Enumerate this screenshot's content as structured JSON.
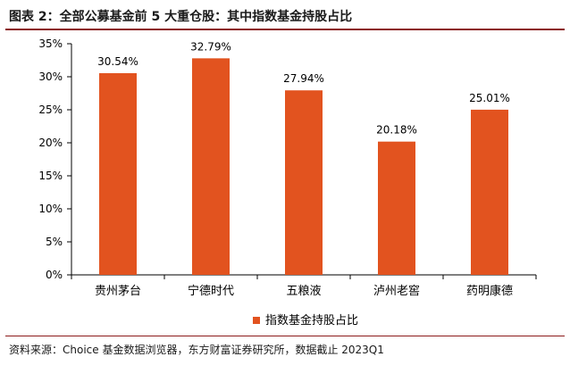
{
  "figure": {
    "title": "图表 2：全部公募基金前 5 大重仓股：其中指数基金持股占比",
    "source": "资料来源：Choice 基金数据浏览器，东方财富证券研究所，数据截止 2023Q1"
  },
  "chart_data": {
    "type": "bar",
    "categories": [
      "贵州茅台",
      "宁德时代",
      "五粮液",
      "泸州老窖",
      "药明康德"
    ],
    "series": [
      {
        "name": "指数基金持股占比",
        "values": [
          30.54,
          32.79,
          27.94,
          20.18,
          25.01
        ],
        "labels": [
          "30.54%",
          "32.79%",
          "27.94%",
          "20.18%",
          "25.01%"
        ],
        "color": "#E2531F"
      }
    ],
    "yticks": [
      "0%",
      "5%",
      "10%",
      "15%",
      "20%",
      "25%",
      "30%",
      "35%"
    ],
    "ylim": [
      0,
      35
    ],
    "grid": false,
    "legend_position": "bottom"
  }
}
